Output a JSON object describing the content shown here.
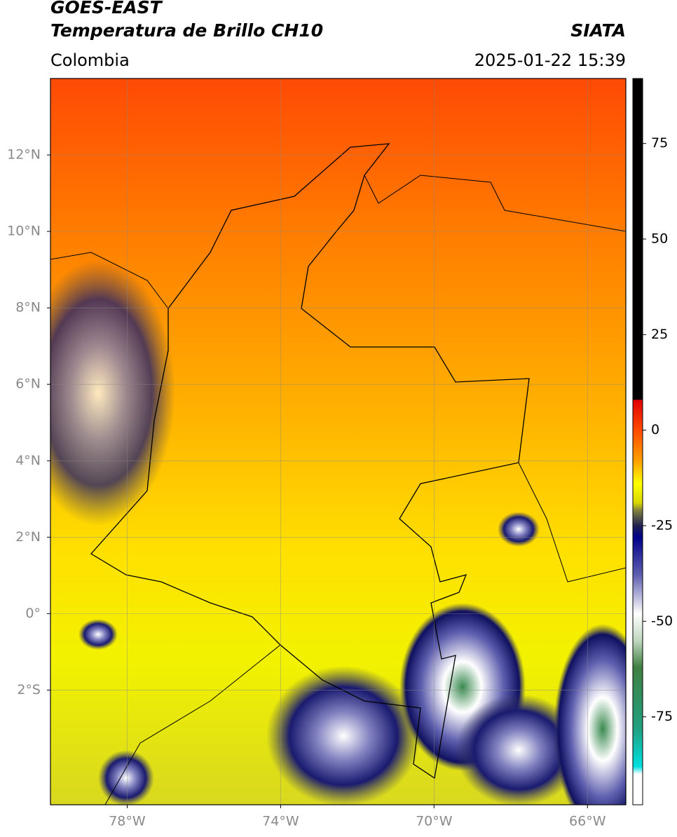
{
  "header": {
    "title": "GOES-EAST",
    "subtitle": "Temperatura de Brillo CH10",
    "region": "Colombia",
    "source": "SIATA",
    "timestamp": "2025-01-22 15:39"
  },
  "map": {
    "xlim": [
      -80,
      -65
    ],
    "ylim": [
      -5,
      14
    ],
    "xticks": [
      {
        "value": -78,
        "label": "78°W"
      },
      {
        "value": -74,
        "label": "74°W"
      },
      {
        "value": -70,
        "label": "70°W"
      },
      {
        "value": -66,
        "label": "66°W"
      }
    ],
    "yticks": [
      {
        "value": 12,
        "label": "12°N"
      },
      {
        "value": 10,
        "label": "10°N"
      },
      {
        "value": 8,
        "label": "8°N"
      },
      {
        "value": 6,
        "label": "6°N"
      },
      {
        "value": 4,
        "label": "4°N"
      },
      {
        "value": 2,
        "label": "2°N"
      },
      {
        "value": 0,
        "label": "0°"
      },
      {
        "value": -2,
        "label": "2°S"
      }
    ],
    "grid": true
  },
  "colorbar": {
    "lim": [
      -98,
      92
    ],
    "ticks": [
      75,
      50,
      25,
      0,
      -25,
      -50,
      -75
    ],
    "colormap": [
      {
        "value": 92,
        "color": "#000000"
      },
      {
        "value": 8,
        "color": "#000000"
      },
      {
        "value": 7.9,
        "color": "#e00000"
      },
      {
        "value": 0,
        "color": "#ff4a00"
      },
      {
        "value": -8,
        "color": "#ffa000"
      },
      {
        "value": -14,
        "color": "#ffff00"
      },
      {
        "value": -19,
        "color": "#d8d800"
      },
      {
        "value": -21,
        "color": "#808040"
      },
      {
        "value": -25,
        "color": "#202050"
      },
      {
        "value": -28,
        "color": "#00008a"
      },
      {
        "value": -38,
        "color": "#6060b0"
      },
      {
        "value": -48,
        "color": "#ffffff"
      },
      {
        "value": -55,
        "color": "#c0d8c0"
      },
      {
        "value": -62,
        "color": "#408040"
      },
      {
        "value": -78,
        "color": "#20a080"
      },
      {
        "value": -88,
        "color": "#00e0e0"
      },
      {
        "value": -90,
        "color": "#ffffff"
      },
      {
        "value": -98,
        "color": "#ffffff"
      }
    ]
  }
}
